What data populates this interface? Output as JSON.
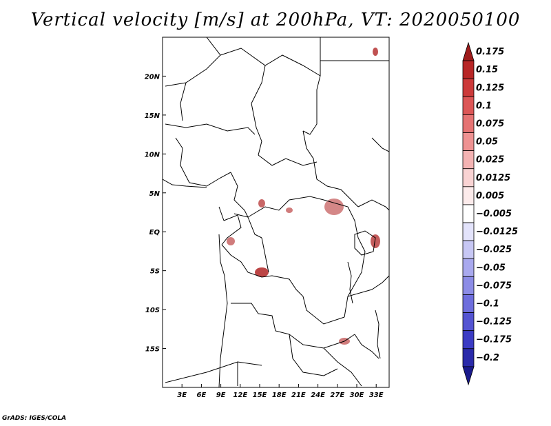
{
  "title": "Vertical velocity [m/s] at 200hPa, VT: 2020050100",
  "credit": "GrADS: IGES/COLA",
  "map": {
    "lon_range": [
      0,
      35
    ],
    "lat_range": [
      -20,
      25
    ],
    "lon_ticks": [
      3,
      6,
      9,
      12,
      15,
      18,
      21,
      24,
      27,
      30,
      33
    ],
    "lon_labels": [
      "3E",
      "6E",
      "9E",
      "12E",
      "15E",
      "18E",
      "21E",
      "24E",
      "27E",
      "30E",
      "33E"
    ],
    "lat_ticks": [
      20,
      15,
      10,
      5,
      0,
      -5,
      -10,
      -15
    ],
    "lat_labels": [
      "20N",
      "15N",
      "10N",
      "5N",
      "EQ",
      "5S",
      "10S",
      "15S"
    ]
  },
  "colorbar": {
    "levels": [
      "0.175",
      "0.15",
      "0.125",
      "0.1",
      "0.075",
      "0.05",
      "0.025",
      "0.0125",
      "0.005",
      "−0.005",
      "−0.0125",
      "−0.025",
      "−0.05",
      "−0.075",
      "−0.1",
      "−0.125",
      "−0.175",
      "−0.2"
    ],
    "colors": [
      "#9e1b1b",
      "#b82626",
      "#cc3a3a",
      "#dc5656",
      "#e57373",
      "#ee9292",
      "#f4b3b3",
      "#f9d3d3",
      "#fcebeb",
      "#ffffff",
      "#e3e3fb",
      "#c7c7f4",
      "#a9a9ee",
      "#8c8ce6",
      "#6e6edd",
      "#5454d2",
      "#3b3bc4",
      "#2a2aaa",
      "#1a1a8c"
    ]
  }
}
